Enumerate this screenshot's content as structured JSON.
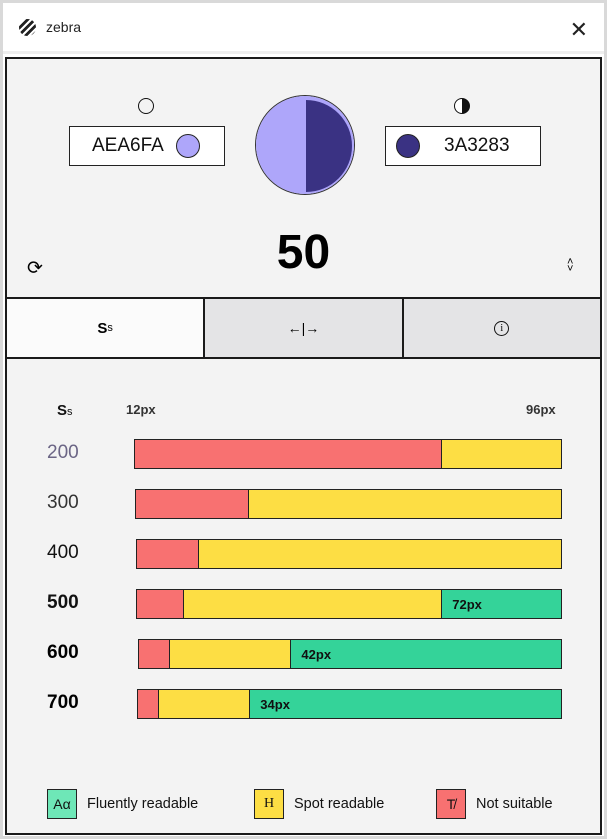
{
  "app": {
    "title": "zebra",
    "close_icon": "close-icon"
  },
  "colors": {
    "foreground": {
      "hex": "AEA6FA",
      "color": "#AEA6FA"
    },
    "background": {
      "hex": "3A3283",
      "color": "#3A3283"
    },
    "red": "#F87171",
    "yellow": "#FDDE44",
    "green": "#34D399"
  },
  "score": "50",
  "tabs": [
    {
      "label": "Ss",
      "icon": "font-size-icon",
      "active": true
    },
    {
      "icon": "resize-horizontal-icon"
    },
    {
      "icon": "info-icon"
    }
  ],
  "chart_data": {
    "type": "bar",
    "stacked": true,
    "header_label": "Ss",
    "xlim": [
      12,
      96
    ],
    "min_label": "12px",
    "max_label": "96px",
    "categories": [
      "200",
      "300",
      "400",
      "500",
      "600",
      "700"
    ],
    "rows": [
      {
        "weight": "200",
        "not_suitable_until": 72,
        "spot_until": 96,
        "fluent_from": null,
        "fluent_label": ""
      },
      {
        "weight": "300",
        "not_suitable_until": 34,
        "spot_until": 96,
        "fluent_from": null,
        "fluent_label": ""
      },
      {
        "weight": "400",
        "not_suitable_until": 24,
        "spot_until": 96,
        "fluent_from": null,
        "fluent_label": ""
      },
      {
        "weight": "500",
        "not_suitable_until": 21,
        "spot_until": 72,
        "fluent_from": 72,
        "fluent_label": "72px"
      },
      {
        "weight": "600",
        "not_suitable_until": 18,
        "spot_until": 42,
        "fluent_from": 42,
        "fluent_label": "42px"
      },
      {
        "weight": "700",
        "not_suitable_until": 16,
        "spot_until": 34,
        "fluent_from": 34,
        "fluent_label": "34px"
      }
    ]
  },
  "legend": [
    {
      "glyph": "Aα",
      "label": "Fluently readable",
      "color": "#6EE7B7"
    },
    {
      "glyph": "H",
      "label": "Spot readable",
      "color": "#FDDE44"
    },
    {
      "glyph": "T̸",
      "label": "Not suitable",
      "color": "#F87171"
    }
  ]
}
